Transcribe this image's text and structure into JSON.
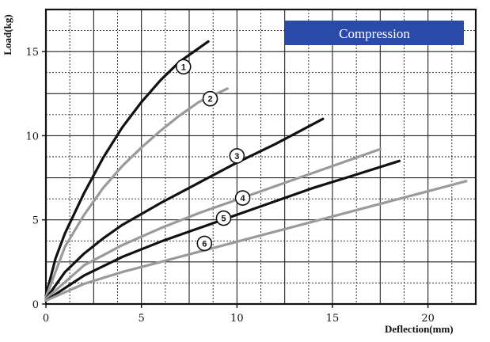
{
  "chart_data": {
    "type": "line",
    "title": "",
    "badge": "Compression",
    "xlabel": "Deflection(mm)",
    "ylabel": "Load(kg)",
    "xlim": [
      0,
      22.5
    ],
    "ylim": [
      0,
      17.5
    ],
    "x_ticks": [
      "0",
      "5",
      "10",
      "15",
      "20"
    ],
    "y_ticks": [
      "0",
      "5",
      "10",
      "15"
    ],
    "x_tick_values": [
      0,
      5,
      10,
      15,
      20
    ],
    "y_tick_values": [
      0,
      5,
      10,
      15
    ],
    "grid": true,
    "colors": {
      "black": "#111111",
      "gray": "#9a9a9a",
      "badge": "#2a4aa8"
    },
    "series": [
      {
        "label": "1",
        "color": "black",
        "x": [
          0,
          0.5,
          1,
          2,
          3,
          4,
          5,
          6,
          7,
          8.5
        ],
        "y": [
          0.5,
          2.7,
          4.2,
          6.6,
          8.7,
          10.5,
          12.0,
          13.3,
          14.4,
          15.6
        ],
        "marker": [
          7.2,
          14.1
        ]
      },
      {
        "label": "2",
        "color": "gray",
        "x": [
          0,
          1,
          2,
          3,
          4,
          5,
          6,
          7,
          8,
          9.5
        ],
        "y": [
          0.4,
          3.4,
          5.3,
          6.9,
          8.2,
          9.3,
          10.3,
          11.2,
          12.0,
          12.8
        ],
        "marker": [
          8.6,
          12.2
        ]
      },
      {
        "label": "3",
        "color": "black",
        "x": [
          0,
          1,
          2,
          3,
          4,
          6,
          8,
          10,
          12,
          14.5
        ],
        "y": [
          0.3,
          1.9,
          3.0,
          3.9,
          4.7,
          6.0,
          7.2,
          8.4,
          9.5,
          11.0
        ],
        "marker": [
          10.0,
          8.8
        ]
      },
      {
        "label": "4",
        "color": "gray",
        "x": [
          0,
          2,
          4,
          6,
          8,
          10,
          12,
          14,
          16,
          17.5
        ],
        "y": [
          0.3,
          2.3,
          3.5,
          4.5,
          5.4,
          6.2,
          7.0,
          7.8,
          8.6,
          9.2
        ],
        "marker": [
          10.3,
          6.3
        ]
      },
      {
        "label": "5",
        "color": "black",
        "x": [
          0,
          2,
          4,
          6,
          8,
          10,
          12,
          14,
          16,
          18.5
        ],
        "y": [
          0.2,
          1.7,
          2.8,
          3.7,
          4.5,
          5.3,
          6.1,
          6.9,
          7.6,
          8.5
        ],
        "marker": [
          9.3,
          5.1
        ]
      },
      {
        "label": "6",
        "color": "gray",
        "x": [
          0,
          2,
          4,
          6,
          8,
          10,
          12,
          14,
          16,
          18,
          20,
          22
        ],
        "y": [
          0.2,
          1.2,
          1.9,
          2.5,
          3.1,
          3.7,
          4.3,
          4.9,
          5.5,
          6.1,
          6.7,
          7.3
        ],
        "marker": [
          8.3,
          3.6
        ]
      }
    ]
  }
}
